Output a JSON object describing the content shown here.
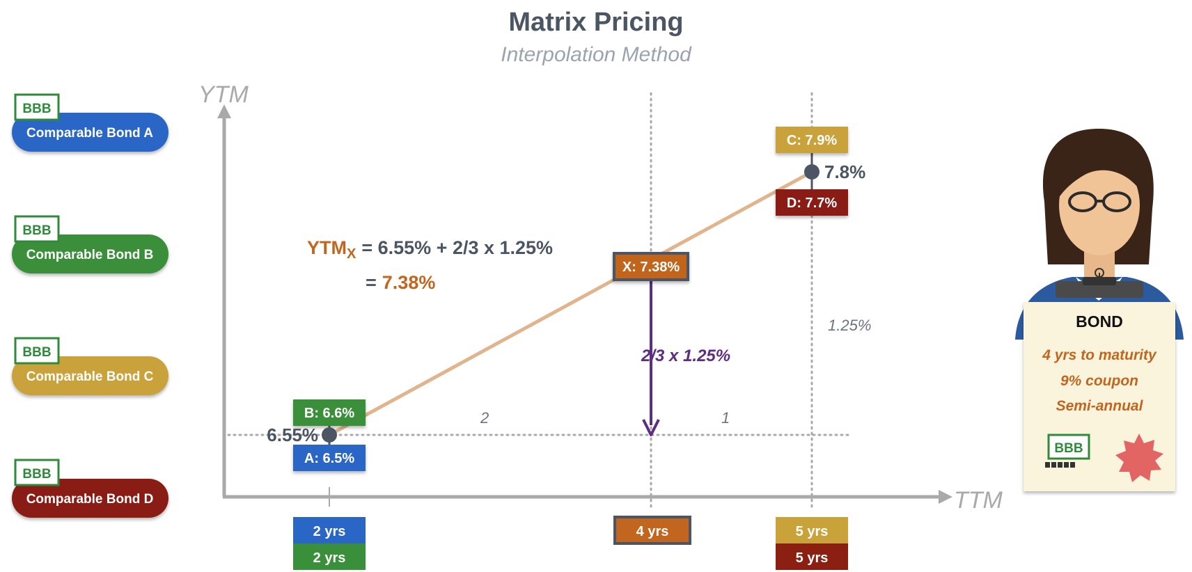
{
  "title": "Matrix Pricing",
  "subtitle": "Interpolation Method",
  "colors": {
    "bond_a": "#2a66c6",
    "bond_b": "#3a8f3a",
    "bond_c": "#c9a23a",
    "bond_d": "#8a1f12",
    "target": "#c2651e",
    "arrow": "#5c2d82",
    "line": "#e0b48c",
    "axis": "#a9a9a9",
    "dark": "#4b5563"
  },
  "bonds": [
    {
      "key": "a",
      "rating": "BBB",
      "label": "Comparable Bond A"
    },
    {
      "key": "b",
      "rating": "BBB",
      "label": "Comparable Bond B"
    },
    {
      "key": "c",
      "rating": "BBB",
      "label": "Comparable Bond C"
    },
    {
      "key": "d",
      "rating": "BBB",
      "label": "Comparable Bond D"
    }
  ],
  "axes": {
    "y_label": "YTM",
    "x_label": "TTM"
  },
  "points": {
    "b": {
      "tag": "B: 6.6%",
      "ttm": 2,
      "ytm": 6.6
    },
    "a": {
      "tag": "A: 6.5%",
      "ttm": 2,
      "ytm": 6.5
    },
    "c": {
      "tag": "C: 7.9%",
      "ttm": 5,
      "ytm": 7.9
    },
    "d": {
      "tag": "D: 7.7%",
      "ttm": 5,
      "ytm": 7.7
    },
    "x": {
      "tag": "X: 7.38%",
      "ttm": 4,
      "ytm": 7.38
    }
  },
  "averages": {
    "low": {
      "label": "6.55%",
      "ttm": 2,
      "ytm": 6.55
    },
    "high": {
      "label": "7.8%",
      "ttm": 5,
      "ytm": 7.8
    }
  },
  "x_ticks": [
    {
      "label": "2 yrs",
      "ttm": 2,
      "bond": "a"
    },
    {
      "label": "2 yrs",
      "ttm": 2,
      "bond": "b"
    },
    {
      "label": "4 yrs",
      "ttm": 4,
      "bond": "x"
    },
    {
      "label": "5 yrs",
      "ttm": 5,
      "bond": "c"
    },
    {
      "label": "5 yrs",
      "ttm": 5,
      "bond": "d"
    }
  ],
  "annotations": {
    "span_left": "2",
    "span_right": "1",
    "ytm_gap": "1.25%",
    "arrow_label": "2/3 x 1.25%"
  },
  "formula": {
    "ytm_prefix": "YTM",
    "ytm_subscript": "X",
    "line1_rest": "= 6.55% + 2/3 x 1.25%",
    "line2_eq": "=",
    "line2_result": "7.38%"
  },
  "card": {
    "heading": "BOND",
    "lines": [
      "4 yrs to maturity",
      "9% coupon",
      "Semi-annual"
    ],
    "rating": "BBB"
  }
}
